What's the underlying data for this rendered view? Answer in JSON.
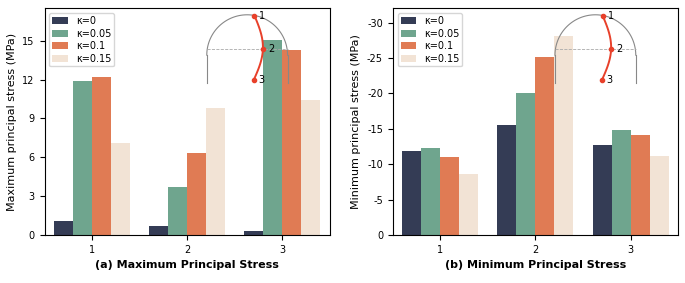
{
  "chart_data": [
    {
      "type": "bar",
      "xlabel": "(a) Maximum Principal Stress",
      "ylabel": "Maximum principal stress (MPa)",
      "categories": [
        "1",
        "2",
        "3"
      ],
      "series": [
        {
          "name": "κ=0",
          "color": "#343c55",
          "values": [
            1.05,
            0.7,
            0.3
          ]
        },
        {
          "name": "κ=0.05",
          "color": "#6fa58e",
          "values": [
            11.9,
            3.7,
            15.1
          ]
        },
        {
          "name": "κ=0.1",
          "color": "#e07b54",
          "values": [
            12.2,
            6.3,
            14.3
          ]
        },
        {
          "name": "κ=0.15",
          "color": "#f2e3d5",
          "values": [
            7.1,
            9.8,
            10.4
          ]
        }
      ],
      "ylim": [
        0,
        17.5
      ],
      "yticks": [
        0,
        3,
        6,
        9,
        12,
        15
      ],
      "legend": "upper left",
      "annotations": [
        "1",
        "2",
        "3"
      ]
    },
    {
      "type": "bar",
      "xlabel": "(b) Minimum Principal Stress",
      "ylabel": "Minimum principal stress (MPa)",
      "categories": [
        "1",
        "2",
        "3"
      ],
      "series": [
        {
          "name": "κ=0",
          "color": "#343c55",
          "values": [
            -11.8,
            -15.5,
            -12.7
          ]
        },
        {
          "name": "κ=0.05",
          "color": "#6fa58e",
          "values": [
            -12.3,
            -20.0,
            -14.8
          ]
        },
        {
          "name": "κ=0.1",
          "color": "#e07b54",
          "values": [
            -11.0,
            -25.2,
            -14.1
          ]
        },
        {
          "name": "κ=0.15",
          "color": "#f2e3d5",
          "values": [
            -8.6,
            -28.1,
            -11.1
          ]
        }
      ],
      "ylim": [
        0,
        -32
      ],
      "yticks": [
        0,
        -5,
        -10,
        -15,
        -20,
        -25,
        -30
      ],
      "legend": "upper left",
      "annotations": [
        "1",
        "2",
        "3"
      ]
    }
  ]
}
